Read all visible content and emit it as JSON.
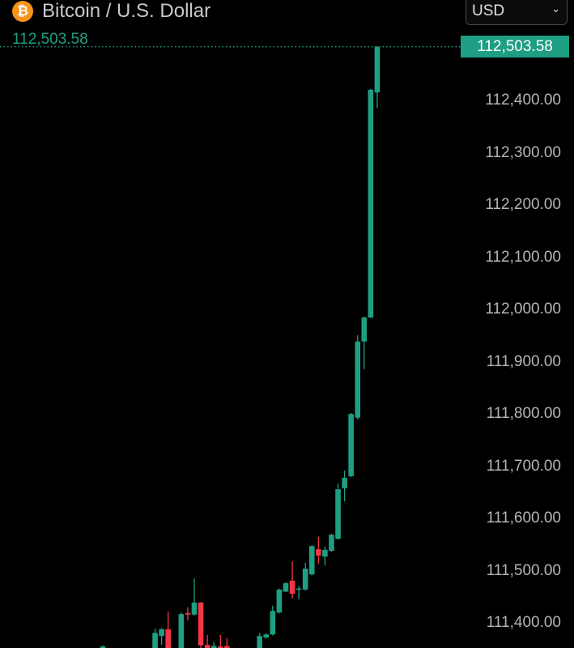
{
  "header": {
    "title": "Bitcoin / U.S. Dollar",
    "icon": "bitcoin-icon",
    "icon_glyph": "₿",
    "currency_select": {
      "value": "USD",
      "icon": "chevron-down-icon"
    }
  },
  "colors": {
    "up": "#1e9e82",
    "down": "#f23645",
    "background": "#000000",
    "axis_text": "#b4b5b9",
    "bitcoin": "#f7931a"
  },
  "chart_data": {
    "type": "candlestick",
    "title": "Bitcoin / U.S. Dollar",
    "last_price": "112,503.58",
    "last_price_value": 112503.58,
    "ylim": [
      111352,
      112593
    ],
    "grid": false,
    "y_ticks": [
      "112,400.00",
      "112,300.00",
      "112,200.00",
      "112,100.00",
      "112,000.00",
      "111,900.00",
      "111,800.00",
      "111,700.00",
      "111,600.00",
      "111,500.00",
      "111,400.00"
    ],
    "y_tick_values": [
      112400,
      112300,
      112200,
      112100,
      112000,
      111900,
      111800,
      111700,
      111600,
      111500,
      111400
    ],
    "candles": [
      {
        "o": 111352,
        "h": 111357,
        "l": 111352,
        "c": 111355
      },
      null,
      null,
      null,
      null,
      null,
      null,
      null,
      {
        "o": 111352,
        "h": 111389,
        "l": 111352,
        "c": 111381
      },
      {
        "o": 111375,
        "h": 111390,
        "l": 111358,
        "c": 111388
      },
      {
        "o": 111388,
        "h": 111422,
        "l": 111352,
        "c": 111352
      },
      null,
      {
        "o": 111352,
        "h": 111420,
        "l": 111352,
        "c": 111417
      },
      {
        "o": 111419,
        "h": 111430,
        "l": 111405,
        "c": 111416
      },
      {
        "o": 111416,
        "h": 111485,
        "l": 111414,
        "c": 111439
      },
      {
        "o": 111439,
        "h": 111440,
        "l": 111352,
        "c": 111357
      },
      {
        "o": 111358,
        "h": 111377,
        "l": 111352,
        "c": 111352
      },
      {
        "o": 111352,
        "h": 111363,
        "l": 111352,
        "c": 111356
      },
      {
        "o": 111355,
        "h": 111377,
        "l": 111352,
        "c": 111352
      },
      {
        "o": 111356,
        "h": 111371,
        "l": 111352,
        "c": 111352
      },
      null,
      null,
      null,
      null,
      {
        "o": 111352,
        "h": 111381,
        "l": 111352,
        "c": 111375
      },
      {
        "o": 111372,
        "h": 111380,
        "l": 111370,
        "c": 111378
      },
      {
        "o": 111378,
        "h": 111433,
        "l": 111376,
        "c": 111423
      },
      {
        "o": 111420,
        "h": 111466,
        "l": 111418,
        "c": 111464
      },
      {
        "o": 111460,
        "h": 111478,
        "l": 111459,
        "c": 111476
      },
      {
        "o": 111481,
        "h": 111518,
        "l": 111447,
        "c": 111456
      },
      {
        "o": 111464,
        "h": 111471,
        "l": 111445,
        "c": 111466
      },
      {
        "o": 111464,
        "h": 111515,
        "l": 111462,
        "c": 111504
      },
      {
        "o": 111493,
        "h": 111549,
        "l": 111491,
        "c": 111547
      },
      {
        "o": 111541,
        "h": 111565,
        "l": 111513,
        "c": 111529
      },
      {
        "o": 111527,
        "h": 111546,
        "l": 111510,
        "c": 111540
      },
      {
        "o": 111538,
        "h": 111571,
        "l": 111536,
        "c": 111569
      },
      {
        "o": 111561,
        "h": 111667,
        "l": 111560,
        "c": 111656
      },
      {
        "o": 111658,
        "h": 111692,
        "l": 111633,
        "c": 111678
      },
      {
        "o": 111681,
        "h": 111802,
        "l": 111679,
        "c": 111800
      },
      {
        "o": 111793,
        "h": 111951,
        "l": 111790,
        "c": 111939
      },
      {
        "o": 111939,
        "h": 111987,
        "l": 111886,
        "c": 111985
      },
      {
        "o": 111985,
        "h": 112423,
        "l": 111984,
        "c": 112421
      },
      {
        "o": 112416,
        "h": 112503.58,
        "l": 112386,
        "c": 112503.58
      }
    ]
  }
}
